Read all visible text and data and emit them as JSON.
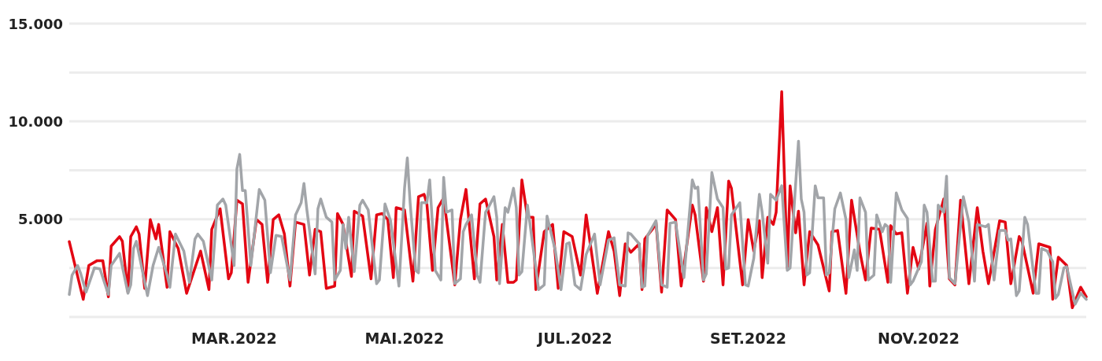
{
  "chart_data": {
    "type": "line",
    "grid": "y",
    "line_style": "solid",
    "xlim": [
      "2022-01-01",
      "2022-12-31"
    ],
    "xticks": [
      {
        "value": "2022-03-01",
        "label": "MAR.2022"
      },
      {
        "value": "2022-05-01",
        "label": "MAI.2022"
      },
      {
        "value": "2022-07-01",
        "label": "JUL.2022"
      },
      {
        "value": "2022-09-01",
        "label": "SET.2022"
      },
      {
        "value": "2022-11-01",
        "label": "NOV.2022"
      }
    ],
    "ylim": [
      0,
      15000
    ],
    "yticks": [
      {
        "value": 0,
        "label": null
      },
      {
        "value": 2500,
        "label": null
      },
      {
        "value": 5000,
        "label": "5.000"
      },
      {
        "value": 7500,
        "label": null
      },
      {
        "value": 10000,
        "label": "10.000"
      },
      {
        "value": 12500,
        "label": null
      },
      {
        "value": 15000,
        "label": "15.000"
      }
    ],
    "series": [
      {
        "color": "#e30613",
        "x": [
          "2022-01-01",
          "2022-01-06",
          "2022-01-08",
          "2022-01-11",
          "2022-01-13",
          "2022-01-15",
          "2022-01-16",
          "2022-01-19",
          "2022-01-20",
          "2022-01-22",
          "2022-01-23",
          "2022-01-25",
          "2022-01-26",
          "2022-01-28",
          "2022-01-30",
          "2022-02-01",
          "2022-02-02",
          "2022-02-05",
          "2022-02-06",
          "2022-02-09",
          "2022-02-12",
          "2022-02-17",
          "2022-02-20",
          "2022-02-21",
          "2022-02-24",
          "2022-02-27",
          "2022-02-28",
          "2022-03-02",
          "2022-03-04",
          "2022-03-06",
          "2022-03-09",
          "2022-03-11",
          "2022-03-13",
          "2022-03-15",
          "2022-03-17",
          "2022-03-19",
          "2022-03-21",
          "2022-03-23",
          "2022-03-26",
          "2022-03-28",
          "2022-03-30",
          "2022-04-01",
          "2022-04-03",
          "2022-04-06",
          "2022-04-07",
          "2022-04-09",
          "2022-04-12",
          "2022-04-13",
          "2022-04-16",
          "2022-04-19",
          "2022-04-21",
          "2022-04-23",
          "2022-04-25",
          "2022-04-27",
          "2022-04-28",
          "2022-05-01",
          "2022-05-04",
          "2022-05-06",
          "2022-05-08",
          "2022-05-09",
          "2022-05-11",
          "2022-05-13",
          "2022-05-15",
          "2022-05-19",
          "2022-05-21",
          "2022-05-23",
          "2022-05-26",
          "2022-05-28",
          "2022-05-30",
          "2022-06-02",
          "2022-06-03",
          "2022-06-05",
          "2022-06-07",
          "2022-06-09",
          "2022-06-10",
          "2022-06-12",
          "2022-06-14",
          "2022-06-16",
          "2022-06-17",
          "2022-06-20",
          "2022-06-23",
          "2022-06-25",
          "2022-06-27",
          "2022-06-30",
          "2022-07-03",
          "2022-07-05",
          "2022-07-09",
          "2022-07-13",
          "2022-07-15",
          "2022-07-17",
          "2022-07-19",
          "2022-07-21",
          "2022-07-24",
          "2022-07-25",
          "2022-07-26",
          "2022-07-29",
          "2022-07-30",
          "2022-08-01",
          "2022-08-03",
          "2022-08-06",
          "2022-08-08",
          "2022-08-12",
          "2022-08-13",
          "2022-08-16",
          "2022-08-17",
          "2022-08-19",
          "2022-08-21",
          "2022-08-23",
          "2022-08-25",
          "2022-08-26",
          "2022-08-30",
          "2022-09-01",
          "2022-09-03",
          "2022-09-05",
          "2022-09-06",
          "2022-09-08",
          "2022-09-10",
          "2022-09-11",
          "2022-09-13",
          "2022-09-15",
          "2022-09-16",
          "2022-09-18",
          "2022-09-19",
          "2022-09-21",
          "2022-09-23",
          "2022-09-26",
          "2022-09-30",
          "2022-10-01",
          "2022-10-03",
          "2022-10-06",
          "2022-10-08",
          "2022-10-11",
          "2022-10-13",
          "2022-10-15",
          "2022-10-18",
          "2022-10-21",
          "2022-10-22",
          "2022-10-24",
          "2022-10-26",
          "2022-10-28",
          "2022-10-30",
          "2022-11-01",
          "2022-11-04",
          "2022-11-05",
          "2022-11-07",
          "2022-11-10",
          "2022-11-12",
          "2022-11-14",
          "2022-11-16",
          "2022-11-19",
          "2022-11-22",
          "2022-11-24",
          "2022-11-26",
          "2022-11-30",
          "2022-12-02",
          "2022-12-04",
          "2022-12-07",
          "2022-12-08",
          "2022-12-12",
          "2022-12-14",
          "2022-12-18",
          "2022-12-19",
          "2022-12-21",
          "2022-12-24",
          "2022-12-26",
          "2022-12-29",
          "2022-12-31"
        ],
        "values": [
          3850,
          900,
          2630,
          2880,
          2880,
          1030,
          3620,
          4110,
          3870,
          1270,
          4110,
          4610,
          4240,
          1460,
          4980,
          3990,
          4730,
          1520,
          4360,
          3500,
          1210,
          3370,
          1400,
          4480,
          5530,
          1950,
          2260,
          5970,
          5780,
          1770,
          4980,
          4730,
          1770,
          4980,
          5220,
          4240,
          1580,
          4850,
          4730,
          2140,
          4480,
          4360,
          1460,
          1580,
          5290,
          4730,
          2070,
          5410,
          5160,
          1950,
          5220,
          5290,
          4980,
          2010,
          5590,
          5470,
          1830,
          6150,
          6270,
          5780,
          2380,
          5590,
          6090,
          1640,
          4980,
          6520,
          1950,
          5780,
          6030,
          4110,
          1890,
          4730,
          1770,
          1770,
          1890,
          7010,
          5100,
          5100,
          1400,
          4360,
          4730,
          1460,
          4360,
          4110,
          2140,
          5220,
          1210,
          4360,
          3370,
          1090,
          3740,
          3310,
          3740,
          1400,
          3990,
          4540,
          4850,
          1270,
          5470,
          4980,
          1580,
          5720,
          5220,
          1830,
          5590,
          4360,
          5590,
          1640,
          6950,
          6580,
          1640,
          4980,
          3370,
          4920,
          2010,
          5100,
          4730,
          5350,
          11520,
          2510,
          6710,
          4300,
          5410,
          1640,
          4360,
          3680,
          1330,
          4360,
          4420,
          1210,
          5970,
          3310,
          1890,
          4540,
          4480,
          1770,
          4670,
          4240,
          4300,
          1210,
          3560,
          2450,
          4790,
          1580,
          4480,
          6030,
          1950,
          1640,
          5970,
          1700,
          5590,
          3370,
          1700,
          4920,
          4850,
          1700,
          4110,
          3870,
          1210,
          3740,
          3560,
          900,
          3060,
          2630,
          470,
          1520,
          1030
        ]
      },
      {
        "color": "#a2a5a9",
        "x": [
          "2022-01-01",
          "2022-01-02",
          "2022-01-04",
          "2022-01-05",
          "2022-01-07",
          "2022-01-10",
          "2022-01-12",
          "2022-01-15",
          "2022-01-16",
          "2022-01-19",
          "2022-01-22",
          "2022-01-23",
          "2022-01-24",
          "2022-01-25",
          "2022-01-29",
          "2022-01-31",
          "2022-02-02",
          "2022-02-05",
          "2022-02-06",
          "2022-02-08",
          "2022-02-11",
          "2022-02-13",
          "2022-02-15",
          "2022-02-16",
          "2022-02-18",
          "2022-02-21",
          "2022-02-23",
          "2022-02-25",
          "2022-02-26",
          "2022-03-01",
          "2022-03-02",
          "2022-03-03",
          "2022-03-04",
          "2022-03-05",
          "2022-03-07",
          "2022-03-10",
          "2022-03-12",
          "2022-03-14",
          "2022-03-16",
          "2022-03-18",
          "2022-03-21",
          "2022-03-23",
          "2022-03-25",
          "2022-03-26",
          "2022-03-27",
          "2022-03-30",
          "2022-03-31",
          "2022-04-01",
          "2022-04-03",
          "2022-04-05",
          "2022-04-06",
          "2022-04-08",
          "2022-04-09",
          "2022-04-10",
          "2022-04-11",
          "2022-04-13",
          "2022-04-15",
          "2022-04-16",
          "2022-04-18",
          "2022-04-21",
          "2022-04-22",
          "2022-04-24",
          "2022-04-26",
          "2022-04-29",
          "2022-05-01",
          "2022-05-02",
          "2022-05-03",
          "2022-05-05",
          "2022-05-06",
          "2022-05-07",
          "2022-05-09",
          "2022-05-10",
          "2022-05-12",
          "2022-05-14",
          "2022-05-15",
          "2022-05-16",
          "2022-05-18",
          "2022-05-19",
          "2022-05-21",
          "2022-05-22",
          "2022-05-23",
          "2022-05-25",
          "2022-05-27",
          "2022-05-28",
          "2022-05-30",
          "2022-05-31",
          "2022-06-02",
          "2022-06-03",
          "2022-06-04",
          "2022-06-06",
          "2022-06-07",
          "2022-06-09",
          "2022-06-10",
          "2022-06-11",
          "2022-06-12",
          "2022-06-14",
          "2022-06-16",
          "2022-06-18",
          "2022-06-20",
          "2022-06-21",
          "2022-06-24",
          "2022-06-26",
          "2022-06-28",
          "2022-06-29",
          "2022-07-01",
          "2022-07-03",
          "2022-07-05",
          "2022-07-08",
          "2022-07-10",
          "2022-07-13",
          "2022-07-15",
          "2022-07-17",
          "2022-07-19",
          "2022-07-20",
          "2022-07-21",
          "2022-07-24",
          "2022-07-25",
          "2022-07-26",
          "2022-07-27",
          "2022-07-30",
          "2022-08-01",
          "2022-08-03",
          "2022-08-04",
          "2022-08-06",
          "2022-08-09",
          "2022-08-12",
          "2022-08-13",
          "2022-08-14",
          "2022-08-16",
          "2022-08-17",
          "2022-08-19",
          "2022-08-21",
          "2022-08-23",
          "2022-08-24",
          "2022-08-25",
          "2022-08-26",
          "2022-08-29",
          "2022-08-31",
          "2022-09-01",
          "2022-09-03",
          "2022-09-05",
          "2022-09-06",
          "2022-09-08",
          "2022-09-09",
          "2022-09-11",
          "2022-09-13",
          "2022-09-15",
          "2022-09-16",
          "2022-09-19",
          "2022-09-20",
          "2022-09-21",
          "2022-09-22",
          "2022-09-23",
          "2022-09-25",
          "2022-09-26",
          "2022-09-28",
          "2022-09-29",
          "2022-09-30",
          "2022-10-02",
          "2022-10-04",
          "2022-10-06",
          "2022-10-07",
          "2022-10-09",
          "2022-10-10",
          "2022-10-11",
          "2022-10-13",
          "2022-10-14",
          "2022-10-16",
          "2022-10-17",
          "2022-10-19",
          "2022-10-20",
          "2022-10-21",
          "2022-10-22",
          "2022-10-24",
          "2022-10-26",
          "2022-10-28",
          "2022-10-29",
          "2022-10-30",
          "2022-11-02",
          "2022-11-03",
          "2022-11-04",
          "2022-11-06",
          "2022-11-07",
          "2022-11-08",
          "2022-11-10",
          "2022-11-11",
          "2022-11-12",
          "2022-11-14",
          "2022-11-17",
          "2022-11-19",
          "2022-11-21",
          "2022-11-22",
          "2022-11-25",
          "2022-11-26",
          "2022-11-28",
          "2022-11-30",
          "2022-12-02",
          "2022-12-03",
          "2022-12-04",
          "2022-12-06",
          "2022-12-07",
          "2022-12-09",
          "2022-12-10",
          "2022-12-13",
          "2022-12-14",
          "2022-12-15",
          "2022-12-17",
          "2022-12-19",
          "2022-12-20",
          "2022-12-21",
          "2022-12-23",
          "2022-12-24",
          "2022-12-27",
          "2022-12-29",
          "2022-12-31"
        ],
        "values": [
          1150,
          2140,
          2630,
          2260,
          1270,
          2510,
          2450,
          1150,
          2630,
          3250,
          1210,
          1640,
          3500,
          3870,
          1090,
          2630,
          3560,
          2140,
          1520,
          4240,
          3370,
          1770,
          3990,
          4240,
          3870,
          1890,
          5720,
          6030,
          5720,
          2630,
          7570,
          8310,
          6460,
          6460,
          2630,
          6520,
          5970,
          2260,
          4170,
          4110,
          1890,
          5220,
          5840,
          6830,
          5530,
          2200,
          5530,
          6030,
          5100,
          4850,
          1890,
          2380,
          4730,
          3500,
          5100,
          2320,
          5720,
          5970,
          5470,
          1700,
          1890,
          5780,
          4920,
          1580,
          6580,
          8130,
          5840,
          2380,
          2260,
          5840,
          5840,
          7010,
          2380,
          1890,
          7140,
          5350,
          5470,
          1700,
          1950,
          4360,
          4730,
          5220,
          2140,
          1770,
          5350,
          5590,
          6150,
          5100,
          1700,
          5590,
          5350,
          6580,
          5590,
          2140,
          2320,
          5720,
          3560,
          1400,
          1640,
          5160,
          3370,
          1400,
          3740,
          3800,
          1640,
          1400,
          3190,
          4240,
          1640,
          3930,
          4050,
          1640,
          1580,
          4300,
          4240,
          3740,
          1520,
          1580,
          4170,
          4920,
          1640,
          1520,
          4790,
          4850,
          2010,
          7010,
          6580,
          6640,
          1890,
          2200,
          7390,
          6030,
          5590,
          2450,
          2510,
          5220,
          5840,
          1640,
          1580,
          3000,
          6270,
          5350,
          2750,
          6270,
          5970,
          6710,
          2380,
          2510,
          8990,
          6030,
          5350,
          2140,
          2260,
          6710,
          6090,
          6090,
          2140,
          2260,
          5530,
          6340,
          4980,
          2010,
          3430,
          2380,
          6090,
          5350,
          1890,
          2140,
          5220,
          4360,
          4730,
          4610,
          1770,
          6340,
          5470,
          5040,
          1640,
          1830,
          2820,
          5720,
          5350,
          1830,
          1830,
          5720,
          5350,
          7200,
          2010,
          1700,
          6150,
          4850,
          1830,
          4730,
          4610,
          4730,
          1890,
          4420,
          4420,
          3930,
          3990,
          1090,
          1330,
          5100,
          4730,
          1210,
          1210,
          3500,
          3370,
          2820,
          960,
          1150,
          2510,
          2570,
          650,
          1210,
          900
        ]
      }
    ]
  }
}
